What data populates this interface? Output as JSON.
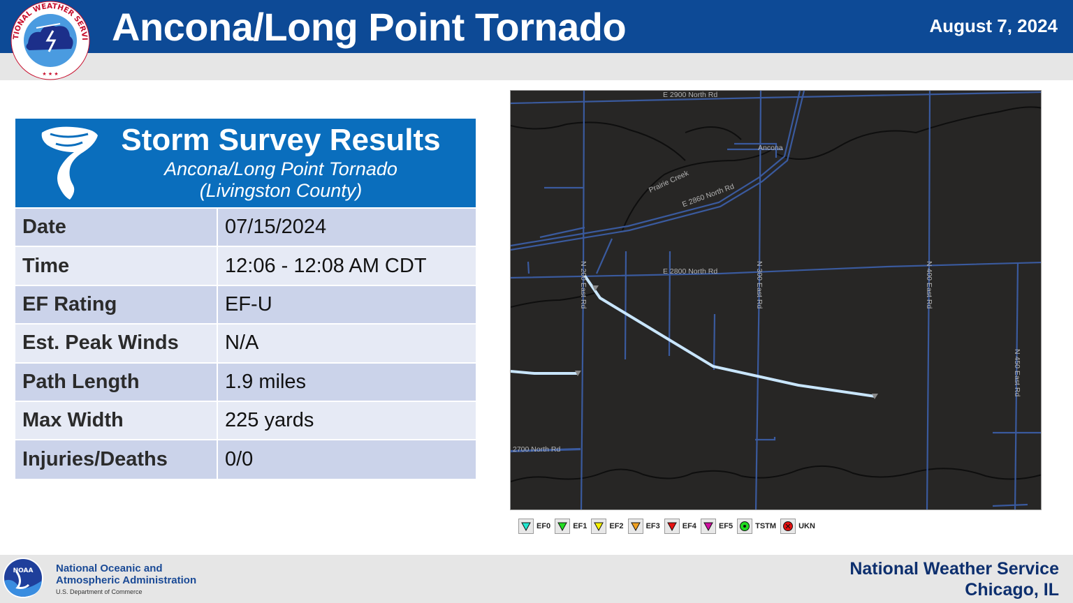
{
  "header": {
    "title": "Ancona/Long Point Tornado",
    "date": "August 7, 2024",
    "logo_text": "NATIONAL WEATHER SERVICE"
  },
  "survey": {
    "title": "Storm Survey Results",
    "subtitle": "Ancona/Long Point Tornado",
    "county": "(Livingston County)",
    "rows": [
      {
        "label": "Date",
        "value": "07/15/2024"
      },
      {
        "label": "Time",
        "value": "12:06 - 12:08 AM CDT"
      },
      {
        "label": "EF Rating",
        "value": "EF-U"
      },
      {
        "label": "Est. Peak Winds",
        "value": "N/A"
      },
      {
        "label": "Path Length",
        "value": "1.9 miles"
      },
      {
        "label": "Max Width",
        "value": "225 yards"
      },
      {
        "label": "Injuries/Deaths",
        "value": "0/0"
      }
    ]
  },
  "map": {
    "labels": {
      "e2900": "E 2900 North Rd",
      "ancona": "Ancona",
      "prairie": "Prairie Creek",
      "e2860": "E 2860 North Rd",
      "e2800": "E 2800 North Rd",
      "n200": "N 200 East Rd",
      "n300": "N 300 East Rd",
      "n400": "N 400 East Rd",
      "n450": "N 450 East Rd",
      "r2700": "2700 North Rd"
    }
  },
  "legend": [
    {
      "label": "EF0",
      "color": "#20e8d0",
      "shape": "triangle"
    },
    {
      "label": "EF1",
      "color": "#22dd22",
      "shape": "triangle"
    },
    {
      "label": "EF2",
      "color": "#f7f300",
      "shape": "triangle"
    },
    {
      "label": "EF3",
      "color": "#f0a020",
      "shape": "triangle"
    },
    {
      "label": "EF4",
      "color": "#e81010",
      "shape": "triangle"
    },
    {
      "label": "EF5",
      "color": "#d010a0",
      "shape": "triangle"
    },
    {
      "label": "TSTM",
      "color": "#22dd22",
      "shape": "circle-dot"
    },
    {
      "label": "UKN",
      "color": "#e81010",
      "shape": "circle-x"
    }
  ],
  "footer": {
    "noaa_line1": "National Oceanic and",
    "noaa_line2": "Atmospheric Administration",
    "noaa_dept": "U.S. Department of Commerce",
    "noaa_logo_text": "NOAA",
    "office_line1": "National Weather Service",
    "office_line2": "Chicago, IL"
  },
  "colors": {
    "header_blue": "#0d4a96",
    "panel_blue": "#0a6ebd",
    "row_dark": "#cbd3ea",
    "row_light": "#e6eaf5",
    "map_bg": "#272625",
    "road": "#3a5a9e",
    "track": "#c9e6ff"
  }
}
